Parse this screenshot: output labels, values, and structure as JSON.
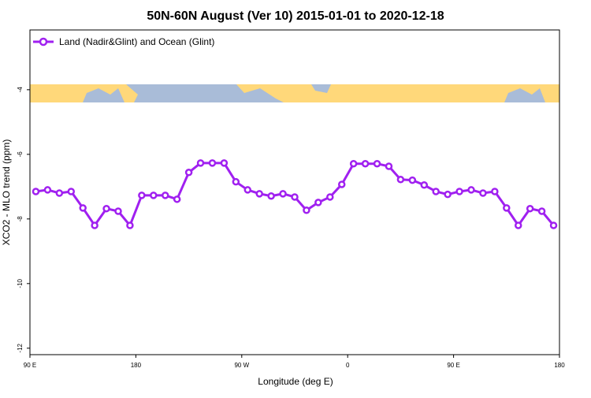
{
  "chart_data": {
    "type": "line",
    "title": "50N-60N August (Ver 10)   2015-01-01 to 2020-12-18",
    "x_label": "Longitude (deg E)",
    "y_label": "XCO2 - MLO trend (ppm)",
    "xlim": [
      90,
      540
    ],
    "ylim": [
      -12.2,
      -2.15
    ],
    "xticks": [
      {
        "value": 90,
        "label": "90 E"
      },
      {
        "value": 180,
        "label": "180"
      },
      {
        "value": 270,
        "label": "90 W"
      },
      {
        "value": 360,
        "label": "0"
      },
      {
        "value": 450,
        "label": "90 E"
      },
      {
        "value": 540,
        "label": "180"
      }
    ],
    "yticks": [
      -12,
      -10,
      -8,
      -6,
      -4
    ],
    "legend": "top-left",
    "x": [
      95,
      105,
      115,
      125,
      135,
      145,
      155,
      165,
      175,
      185,
      195,
      205,
      215,
      225,
      235,
      245,
      255,
      265,
      275,
      285,
      295,
      305,
      315,
      325,
      335,
      345,
      355,
      365,
      375,
      385,
      395,
      405,
      415,
      425,
      435,
      445,
      455,
      465,
      475,
      485,
      495,
      505,
      515,
      525,
      535
    ],
    "series": [
      {
        "name": "Land (Nadir&Glint) and Ocean (Glint)",
        "color": "#a020f0",
        "values": [
          -7.15,
          -7.1,
          -7.2,
          -7.15,
          -7.66,
          -8.2,
          -7.68,
          -7.76,
          -8.2,
          -7.27,
          -7.27,
          -7.27,
          -7.39,
          -6.56,
          -6.27,
          -6.27,
          -6.27,
          -6.85,
          -7.1,
          -7.22,
          -7.29,
          -7.22,
          -7.32,
          -7.73,
          -7.49,
          -7.32,
          -6.93,
          -6.29,
          -6.29,
          -6.29,
          -6.37,
          -6.78,
          -6.8,
          -6.95,
          -7.15,
          -7.24,
          -7.15,
          -7.1,
          -7.2,
          -7.15,
          -7.66,
          -8.2,
          -7.68,
          -7.76,
          -8.2
        ]
      }
    ]
  }
}
